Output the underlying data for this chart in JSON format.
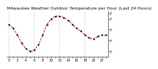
{
  "title": "Milwaukee Weather Outdoor Temperature per Hour (Last 24 Hours)",
  "hours": [
    0,
    1,
    2,
    3,
    4,
    5,
    6,
    7,
    8,
    9,
    10,
    11,
    12,
    13,
    14,
    15,
    16,
    17,
    18,
    19,
    20,
    21,
    22,
    23
  ],
  "temps": [
    38,
    35,
    30,
    24,
    20,
    18,
    19,
    23,
    30,
    38,
    42,
    44,
    44,
    43,
    41,
    38,
    35,
    33,
    30,
    28,
    27,
    29,
    30,
    30
  ],
  "line_color": "#cc0000",
  "marker_color": "#000000",
  "bg_color": "#ffffff",
  "plot_bg": "#ffffff",
  "grid_color": "#999999",
  "ylim_min": 14,
  "ylim_max": 48,
  "ytick_labels": [
    "F.",
    "F.",
    "F.",
    "F.",
    "F."
  ],
  "ytick_values": [
    18,
    26,
    34,
    42,
    46
  ],
  "title_fontsize": 4.5,
  "tick_fontsize": 3.5,
  "line_width": 0.7,
  "marker_size": 1.5
}
